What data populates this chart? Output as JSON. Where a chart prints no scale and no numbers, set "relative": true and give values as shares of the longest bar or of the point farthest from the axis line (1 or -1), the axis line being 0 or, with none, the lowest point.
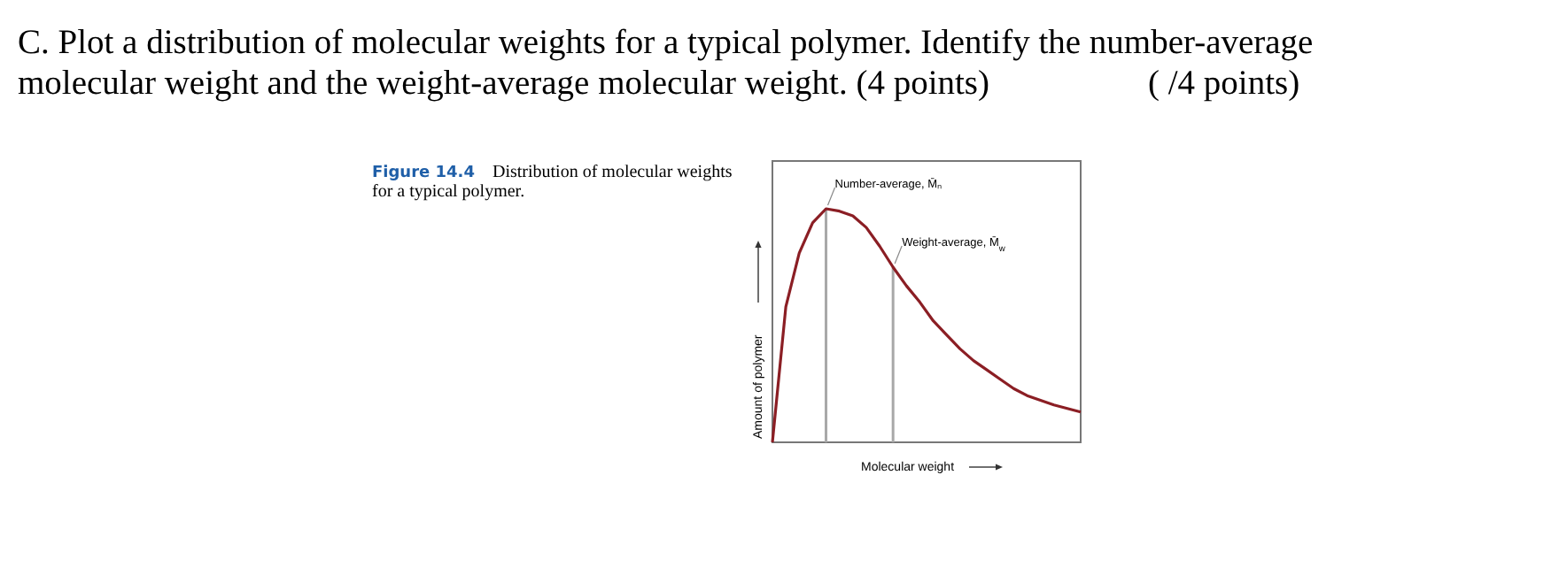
{
  "chart_data": {
    "type": "line",
    "title": "C. Plot a distribution of molecular weights for a typical polymer. Identify the number-average molecular weight and the weight-average molecular weight. (4 points)",
    "subtitle": "Figure 14.4",
    "annotations": [
      "Distribution of molecular weights for a typical polymer.",
      "( /4 points)",
      "Number-average, M̄ₙ",
      "Weight-average, M̄$_{w}$"
    ],
    "xlabel": "Molecular weight",
    "ylabel": "Amount of polymer",
    "relative": true,
    "categories": [
      null,
      null,
      null,
      null,
      null,
      null,
      null,
      null,
      null,
      null,
      null,
      null,
      null,
      null,
      null,
      null,
      null,
      null,
      null,
      null,
      null,
      null,
      null,
      null
    ],
    "series": [
      {
        "color": "#8b1e24",
        "values": [
          0,
          0.58,
          0.81,
          0.94,
          1,
          0.99,
          0.97,
          0.92,
          0.84,
          0.75,
          0.67,
          0.6,
          0.52,
          0.46,
          0.4,
          0.35,
          0.31,
          0.27,
          0.23,
          0.2,
          0.18,
          0.16,
          0.145,
          0.13
        ]
      }
    ]
  }
}
